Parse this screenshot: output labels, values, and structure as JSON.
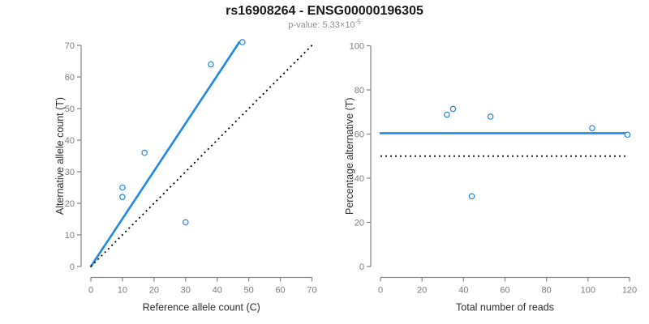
{
  "header": {
    "title": "rs16908264 - ENSG00000196305",
    "subtitle_base": "p-value: 5.33×10",
    "subtitle_exponent": "-5"
  },
  "colors": {
    "accent_blue": "#1E88E5",
    "dotted_black": "#000000",
    "axis_gray": "#858585",
    "tick_label_gray": "#7d7d7d",
    "axis_title_dark": "#303030",
    "title_black": "#1a1a1a",
    "subtitle_gray": "#909090"
  },
  "chart_data": [
    {
      "type": "scatter",
      "panel": "left",
      "title": "",
      "xlabel": "Reference allele count (C)",
      "ylabel": "Alternative allele count (T)",
      "xlim": [
        0,
        70
      ],
      "ylim": [
        0,
        70
      ],
      "xticks": [
        0,
        10,
        20,
        30,
        40,
        50,
        60,
        70
      ],
      "yticks": [
        0,
        10,
        20,
        30,
        40,
        50,
        60,
        70
      ],
      "grid": false,
      "legend": false,
      "points": [
        [
          10,
          25
        ],
        [
          10,
          22
        ],
        [
          17,
          36
        ],
        [
          30,
          14
        ],
        [
          38,
          64
        ],
        [
          48,
          71
        ]
      ],
      "lines": [
        {
          "name": "fit-line",
          "style": "solid",
          "x1": 0,
          "y1": 0,
          "x2": 47,
          "y2": 71
        },
        {
          "name": "identity-line",
          "style": "dotted",
          "x1": 0,
          "y1": 0,
          "x2": 70.5,
          "y2": 70.5
        }
      ]
    },
    {
      "type": "scatter",
      "panel": "right",
      "title": "",
      "xlabel": "Total number of reads",
      "ylabel": "Percentage alternative (T)",
      "xlim": [
        0,
        120
      ],
      "ylim": [
        0,
        100
      ],
      "xticks": [
        0,
        20,
        40,
        60,
        80,
        100,
        120
      ],
      "yticks": [
        0,
        20,
        40,
        60,
        80,
        100
      ],
      "grid": false,
      "legend": false,
      "points": [
        [
          32,
          68.8
        ],
        [
          35,
          71.4
        ],
        [
          44,
          31.8
        ],
        [
          53,
          67.9
        ],
        [
          102,
          62.7
        ],
        [
          119,
          59.7
        ]
      ],
      "lines": [
        {
          "name": "mean-percentage-line",
          "style": "solid",
          "x1": 0,
          "y1": 60.4,
          "x2": 119,
          "y2": 60.4
        },
        {
          "name": "expected-50-line",
          "style": "dotted",
          "x1": 0,
          "y1": 50,
          "x2": 118,
          "y2": 50
        }
      ]
    }
  ]
}
